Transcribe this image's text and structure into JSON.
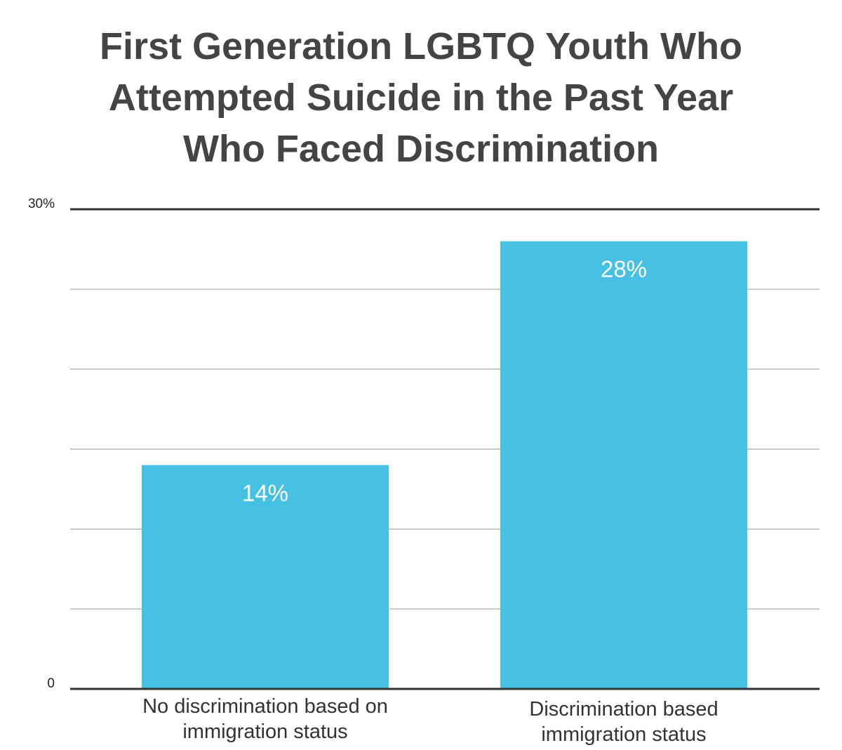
{
  "chart_data": {
    "type": "bar",
    "title": "First Generation LGBTQ Youth Who Attempted Suicide in the Past Year Who Faced Discrimination",
    "title_lines": [
      "First Generation LGBTQ Youth Who",
      "Attempted Suicide in the Past Year",
      "Who Faced Discrimination"
    ],
    "categories": [
      "No discrimination based on immigration status",
      "Discrimination based immigration status"
    ],
    "category_label_lines": [
      [
        "No discrimination based on",
        "immigration status"
      ],
      [
        "Discrimination based",
        "immigration status"
      ]
    ],
    "values": [
      14,
      28
    ],
    "value_labels": [
      "14%",
      "28%"
    ],
    "xlabel": "",
    "ylabel": "",
    "ylim": [
      0,
      30
    ],
    "y_tick_labels": [
      {
        "value": 0,
        "label": "0"
      },
      {
        "value": 30,
        "label": "30%"
      }
    ],
    "gridlines": [
      5,
      10,
      15,
      20,
      25
    ],
    "grid": true,
    "legend": "none",
    "colors": {
      "bar": "#47c1e3",
      "title": "#444444",
      "gridline": "#9a9a9a",
      "axis": "#333333",
      "value_label": "#ffffff"
    }
  }
}
